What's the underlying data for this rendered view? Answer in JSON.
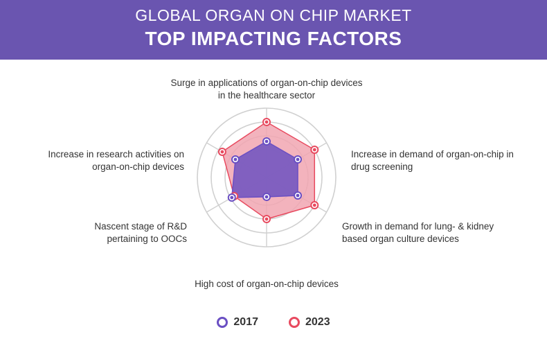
{
  "header": {
    "title_line1": "GLOBAL ORGAN ON CHIP MARKET",
    "title_line2": "TOP IMPACTING FACTORS"
  },
  "chart_data": {
    "type": "radar",
    "title": "GLOBAL ORGAN ON CHIP MARKET TOP IMPACTING FACTORS",
    "axes": [
      [
        "Surge in applications of organ-on-chip devices",
        "in the healthcare sector"
      ],
      [
        "Increase in demand of organ-on-chip in",
        "drug screening"
      ],
      [
        "Growth in demand for lung- & kidney",
        "based organ culture devices"
      ],
      [
        "High cost of organ-on-chip devices"
      ],
      [
        "Nascent stage of R&D",
        "pertaining to OOCs"
      ],
      [
        "Increase in research activities on",
        "organ-on-chip devices"
      ]
    ],
    "rlim": [
      0,
      5
    ],
    "grid": true,
    "legend_position": "bottom",
    "series": [
      {
        "name": "2017",
        "color": "#6a4fc3",
        "values": [
          2.6,
          2.6,
          2.6,
          1.4,
          2.9,
          2.6
        ]
      },
      {
        "name": "2023",
        "color": "#e84a5f",
        "values": [
          4.0,
          4.0,
          4.0,
          3.0,
          2.7,
          3.7
        ]
      }
    ]
  },
  "colors": {
    "header_bg": "#6a55b0",
    "grid": "#d0d0d0",
    "fill_2023": "#f1a6b1",
    "fill_2017": "#7a5cc0"
  }
}
